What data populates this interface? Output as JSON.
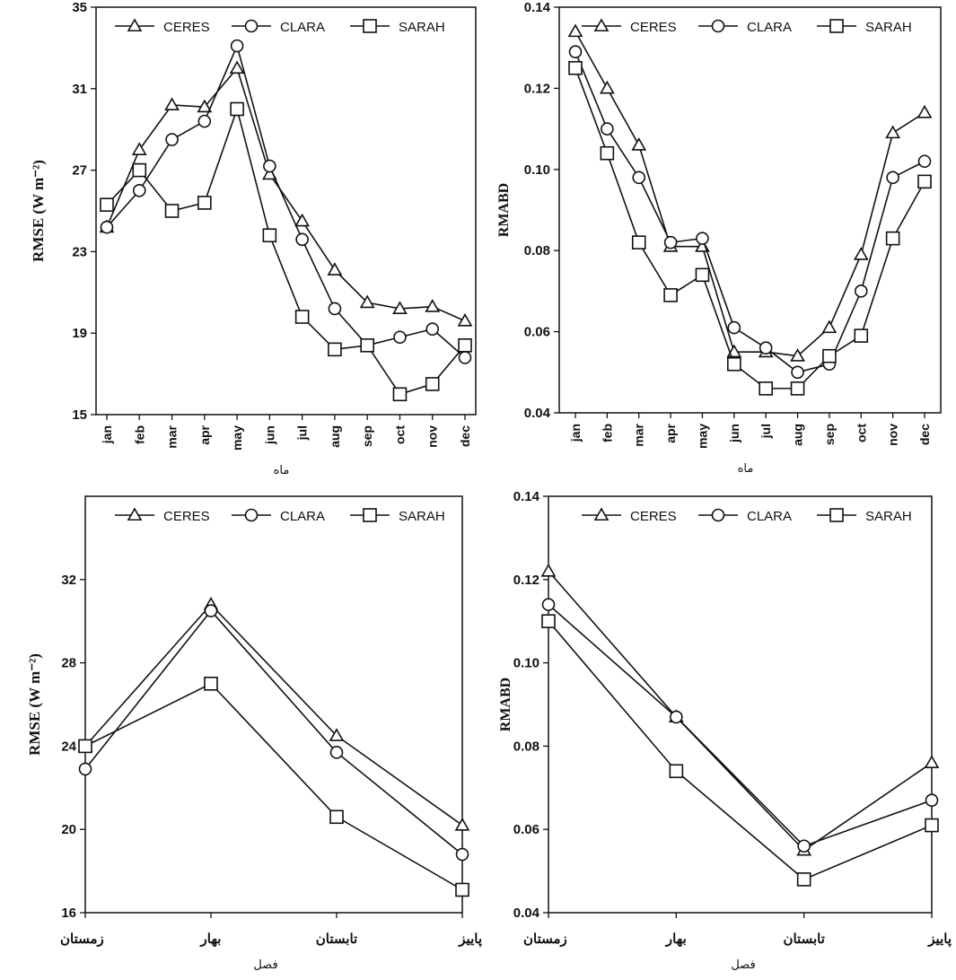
{
  "figure": {
    "series_names": [
      "CERES",
      "CLARA",
      "SARAH"
    ]
  },
  "chart_data": [
    {
      "type": "line",
      "panel": "monthly-rmse",
      "xlabel": "ماه",
      "ylabel": "RMSE (W m⁻²)",
      "categories": [
        "jan",
        "feb",
        "mar",
        "apr",
        "may",
        "jun",
        "jul",
        "aug",
        "sep",
        "oct",
        "nov",
        "dec"
      ],
      "ylim": [
        15,
        35
      ],
      "yticks": [
        "15",
        "19",
        "23",
        "27",
        "31",
        "35"
      ],
      "legend": "top",
      "series": [
        {
          "name": "CERES",
          "marker": "triangle",
          "values": [
            24.2,
            28.0,
            30.2,
            30.1,
            32.0,
            26.8,
            24.5,
            22.1,
            20.5,
            20.2,
            20.3,
            19.6
          ]
        },
        {
          "name": "CLARA",
          "marker": "circle",
          "values": [
            24.2,
            26.0,
            28.5,
            29.4,
            33.1,
            27.2,
            23.6,
            20.2,
            18.4,
            18.8,
            19.2,
            17.8
          ]
        },
        {
          "name": "SARAH",
          "marker": "square",
          "values": [
            25.3,
            27.0,
            25.0,
            25.4,
            30.0,
            23.8,
            19.8,
            18.2,
            18.4,
            16.0,
            16.5,
            18.4
          ]
        }
      ]
    },
    {
      "type": "line",
      "panel": "monthly-rmabd",
      "xlabel": "ماه",
      "ylabel": "RMABD",
      "categories": [
        "jan",
        "feb",
        "mar",
        "apr",
        "may",
        "jun",
        "jul",
        "aug",
        "sep",
        "oct",
        "nov",
        "dec"
      ],
      "ylim": [
        0.04,
        0.14
      ],
      "yticks": [
        "0.04",
        "0.06",
        "0.08",
        "0.10",
        "0.12",
        "0.14"
      ],
      "legend": "top",
      "series": [
        {
          "name": "CERES",
          "marker": "triangle",
          "values": [
            0.134,
            0.12,
            0.106,
            0.081,
            0.081,
            0.055,
            0.055,
            0.054,
            0.061,
            0.079,
            0.109,
            0.114
          ]
        },
        {
          "name": "CLARA",
          "marker": "circle",
          "values": [
            0.129,
            0.11,
            0.098,
            0.082,
            0.083,
            0.061,
            0.056,
            0.05,
            0.052,
            0.07,
            0.098,
            0.102
          ]
        },
        {
          "name": "SARAH",
          "marker": "square",
          "values": [
            0.125,
            0.104,
            0.082,
            0.069,
            0.074,
            0.052,
            0.046,
            0.046,
            0.054,
            0.059,
            0.083,
            0.097
          ]
        }
      ]
    },
    {
      "type": "line",
      "panel": "seasonal-rmse",
      "xlabel": "فصل",
      "ylabel": "RMSE (W m⁻²)",
      "categories": [
        "زمستان",
        "بهار",
        "تابستان",
        "پاییز"
      ],
      "ylim": [
        16,
        36
      ],
      "yticks": [
        "16",
        "20",
        "24",
        "28",
        "32"
      ],
      "legend": "top",
      "series": [
        {
          "name": "CERES",
          "marker": "triangle",
          "values": [
            24.0,
            30.8,
            24.5,
            20.2
          ]
        },
        {
          "name": "CLARA",
          "marker": "circle",
          "values": [
            22.9,
            30.5,
            23.7,
            18.8
          ]
        },
        {
          "name": "SARAH",
          "marker": "square",
          "values": [
            24.0,
            27.0,
            20.6,
            17.1
          ]
        }
      ]
    },
    {
      "type": "line",
      "panel": "seasonal-rmabd",
      "xlabel": "فصل",
      "ylabel": "RMABD",
      "categories": [
        "زمستان",
        "بهار",
        "تابستان",
        "پاییز"
      ],
      "ylim": [
        0.04,
        0.14
      ],
      "yticks": [
        "0.04",
        "0.06",
        "0.08",
        "0.10",
        "0.12",
        "0.14"
      ],
      "legend": "top",
      "series": [
        {
          "name": "CERES",
          "marker": "triangle",
          "values": [
            0.122,
            0.087,
            0.055,
            0.076
          ]
        },
        {
          "name": "CLARA",
          "marker": "circle",
          "values": [
            0.114,
            0.087,
            0.056,
            0.067
          ]
        },
        {
          "name": "SARAH",
          "marker": "square",
          "values": [
            0.11,
            0.074,
            0.048,
            0.061
          ]
        }
      ]
    }
  ]
}
